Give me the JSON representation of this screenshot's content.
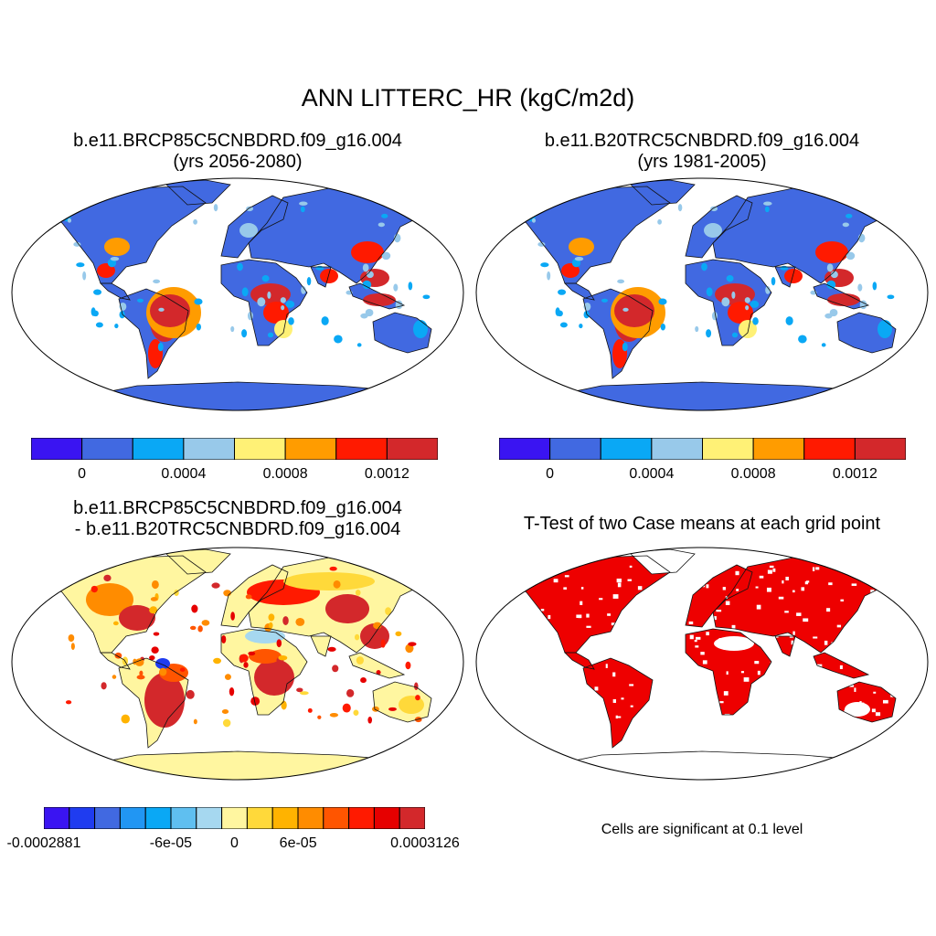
{
  "title": "ANN LITTERC_HR (kgC/m2d)",
  "colors": {
    "land_low": "#4169e1",
    "land_mid": "#98c9ea",
    "land_high": "#d3282b",
    "sig": "#ee0000",
    "coast": "#111111"
  },
  "panels": [
    {
      "id": "case",
      "title_line1": "b.e11.BRCP85C5CNBDRD.f09_g16.004",
      "title_line2": "(yrs 2056-2080)",
      "colorbar": {
        "colors": [
          "#3a14f2",
          "#4169e1",
          "#0aa8f5",
          "#98c9ea",
          "#fff176",
          "#ff9c00",
          "#ff1a00",
          "#d3282b"
        ],
        "ticks": [
          {
            "label": "0",
            "value": 0
          },
          {
            "label": "0.0004",
            "value": 0.0004
          },
          {
            "label": "0.0008",
            "value": 0.0008
          },
          {
            "label": "0.0012",
            "value": 0.0012
          }
        ]
      }
    },
    {
      "id": "control",
      "title_line1": "b.e11.B20TRC5CNBDRD.f09_g16.004",
      "title_line2": "(yrs 1981-2005)",
      "colorbar": {
        "colors": [
          "#3a14f2",
          "#4169e1",
          "#0aa8f5",
          "#98c9ea",
          "#fff176",
          "#ff9c00",
          "#ff1a00",
          "#d3282b"
        ],
        "ticks": [
          {
            "label": "0",
            "value": 0
          },
          {
            "label": "0.0004",
            "value": 0.0004
          },
          {
            "label": "0.0008",
            "value": 0.0008
          },
          {
            "label": "0.0012",
            "value": 0.0012
          }
        ]
      }
    },
    {
      "id": "difference",
      "title_line1": "b.e11.BRCP85C5CNBDRD.f09_g16.004",
      "title_line2": "- b.e11.B20TRC5CNBDRD.f09_g16.004",
      "colorbar": {
        "colors": [
          "#3a14f2",
          "#1f3cf0",
          "#4169e1",
          "#2196f3",
          "#0aa8f5",
          "#5fbff0",
          "#a6d8f0",
          "#fff6a0",
          "#ffd93a",
          "#ffb300",
          "#ff8c00",
          "#ff5500",
          "#ff1a00",
          "#e60000",
          "#d3282b"
        ],
        "ticks": [
          {
            "label": "-0.0002881",
            "value": -0.0002881
          },
          {
            "label": "-6e-05",
            "value": -6e-05
          },
          {
            "label": "0",
            "value": 0
          },
          {
            "label": "6e-05",
            "value": 6e-05
          },
          {
            "label": "0.0003126",
            "value": 0.0003126
          }
        ]
      }
    },
    {
      "id": "ttest",
      "title_line1": "T-Test of two Case means at each grid point",
      "note": "Cells are significant at 0.1 level"
    }
  ]
}
